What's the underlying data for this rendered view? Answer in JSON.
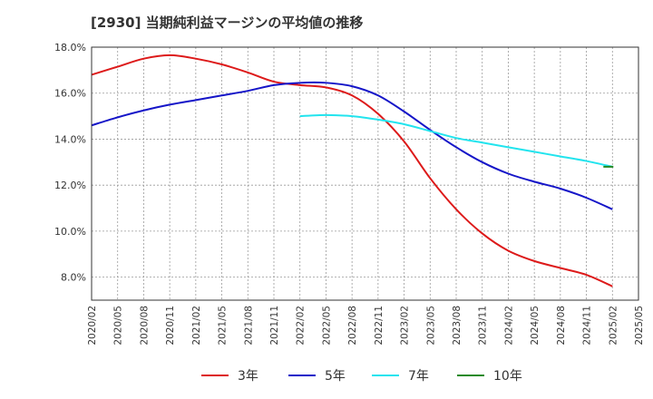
{
  "title": "[2930]  当期純利益マージンの平均値の推移",
  "colors": {
    "3y": "#dd1a1a",
    "5y": "#1515c8",
    "7y": "#22e4ee",
    "10y": "#238a23"
  },
  "chart_data": {
    "type": "line",
    "title": "[2930]  当期純利益マージンの平均値の推移",
    "ylim": [
      7.0,
      18.0
    ],
    "yticks": [
      8.0,
      10.0,
      12.0,
      14.0,
      16.0,
      18.0
    ],
    "ytick_labels": [
      "8.0%",
      "10.0%",
      "12.0%",
      "14.0%",
      "16.0%",
      "18.0%"
    ],
    "grid": true,
    "legend_position": "bottom",
    "x_tick_labels": [
      "2020/02",
      "2020/05",
      "2020/08",
      "2020/11",
      "2021/02",
      "2021/05",
      "2021/08",
      "2021/11",
      "2022/02",
      "2022/05",
      "2022/08",
      "2022/11",
      "2023/02",
      "2023/05",
      "2023/08",
      "2023/11",
      "2024/02",
      "2024/05",
      "2024/08",
      "2024/11",
      "2025/02",
      "2025/05"
    ],
    "series": [
      {
        "name": "3年",
        "color_key": "3y",
        "points": [
          [
            "2020/02",
            16.8
          ],
          [
            "2020/05",
            17.15
          ],
          [
            "2020/08",
            17.5
          ],
          [
            "2020/11",
            17.65
          ],
          [
            "2021/02",
            17.5
          ],
          [
            "2021/05",
            17.25
          ],
          [
            "2021/08",
            16.9
          ],
          [
            "2021/11",
            16.5
          ],
          [
            "2022/02",
            16.35
          ],
          [
            "2022/05",
            16.25
          ],
          [
            "2022/08",
            15.9
          ],
          [
            "2022/11",
            15.1
          ],
          [
            "2023/02",
            13.9
          ],
          [
            "2023/05",
            12.3
          ],
          [
            "2023/08",
            10.95
          ],
          [
            "2023/11",
            9.9
          ],
          [
            "2024/02",
            9.15
          ],
          [
            "2024/05",
            8.7
          ],
          [
            "2024/08",
            8.4
          ],
          [
            "2024/11",
            8.1
          ],
          [
            "2025/02",
            7.6
          ]
        ]
      },
      {
        "name": "5年",
        "color_key": "5y",
        "points": [
          [
            "2020/02",
            14.6
          ],
          [
            "2020/05",
            14.95
          ],
          [
            "2020/08",
            15.25
          ],
          [
            "2020/11",
            15.5
          ],
          [
            "2021/02",
            15.7
          ],
          [
            "2021/05",
            15.9
          ],
          [
            "2021/08",
            16.1
          ],
          [
            "2021/11",
            16.35
          ],
          [
            "2022/02",
            16.45
          ],
          [
            "2022/05",
            16.45
          ],
          [
            "2022/08",
            16.3
          ],
          [
            "2022/11",
            15.9
          ],
          [
            "2023/02",
            15.2
          ],
          [
            "2023/05",
            14.4
          ],
          [
            "2023/08",
            13.65
          ],
          [
            "2023/11",
            13.0
          ],
          [
            "2024/02",
            12.5
          ],
          [
            "2024/05",
            12.15
          ],
          [
            "2024/08",
            11.85
          ],
          [
            "2024/11",
            11.45
          ],
          [
            "2025/02",
            10.95
          ]
        ]
      },
      {
        "name": "7年",
        "color_key": "7y",
        "points": [
          [
            "2022/02",
            15.0
          ],
          [
            "2022/05",
            15.05
          ],
          [
            "2022/08",
            15.0
          ],
          [
            "2022/11",
            14.85
          ],
          [
            "2023/02",
            14.65
          ],
          [
            "2023/05",
            14.35
          ],
          [
            "2023/08",
            14.05
          ],
          [
            "2023/11",
            13.85
          ],
          [
            "2024/02",
            13.65
          ],
          [
            "2024/05",
            13.45
          ],
          [
            "2024/08",
            13.25
          ],
          [
            "2024/11",
            13.05
          ],
          [
            "2025/02",
            12.8
          ]
        ]
      },
      {
        "name": "10年",
        "color_key": "10y",
        "points": [
          [
            "2025/02",
            12.8
          ]
        ]
      }
    ]
  }
}
